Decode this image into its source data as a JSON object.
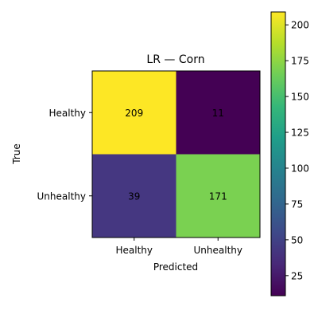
{
  "chart_data": {
    "type": "heatmap",
    "title": "LR — Corn",
    "xlabel": "Predicted",
    "ylabel": "True",
    "x_categories": [
      "Healthy",
      "Unhealthy"
    ],
    "y_categories": [
      "Healthy",
      "Unhealthy"
    ],
    "values": [
      [
        209,
        11
      ],
      [
        39,
        171
      ]
    ],
    "colormap": "viridis",
    "colorbar": {
      "range": [
        11,
        209
      ],
      "ticks": [
        25,
        50,
        75,
        100,
        125,
        150,
        175,
        200
      ],
      "tick_labels": [
        "25",
        "50",
        "75",
        "100",
        "125",
        "150",
        "175",
        "200"
      ]
    },
    "cell_colors": [
      [
        "#fde725",
        "#440154"
      ],
      [
        "#453781",
        "#7ad151"
      ]
    ],
    "annotation_color": "#000000",
    "grid": false
  }
}
